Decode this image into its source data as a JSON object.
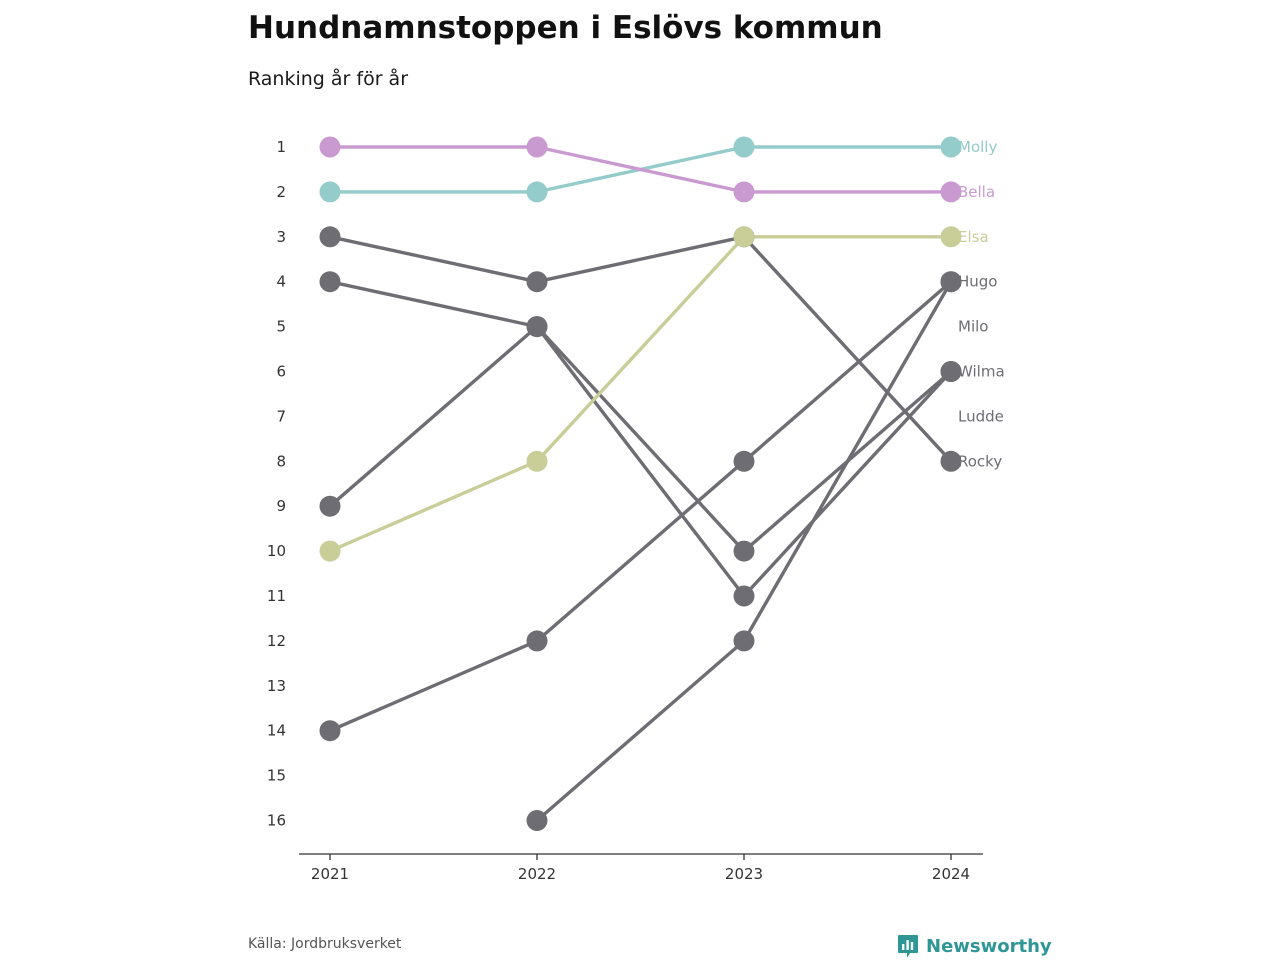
{
  "title": "Hundnamnstoppen i Eslövs kommun",
  "subtitle": "Ranking år för år",
  "source": "Källa: Jordbruksverket",
  "brand": {
    "name": "Newsworthy",
    "icon": "bar-chart-speech-bubble-icon",
    "color": "#2f9696"
  },
  "colors": {
    "highlight_1": "#94cbcb",
    "highlight_2": "#c99ad0",
    "highlight_3": "#c9cd98",
    "other": "#6e6d73",
    "axis": "#333333"
  },
  "chart_data": {
    "type": "line",
    "subtype": "bump",
    "x": [
      "2021",
      "2022",
      "2023",
      "2024"
    ],
    "y_ticks": [
      1,
      2,
      3,
      4,
      5,
      6,
      7,
      8,
      9,
      10,
      11,
      12,
      13,
      14,
      15,
      16
    ],
    "y_reversed": true,
    "ylim": [
      1,
      16
    ],
    "grid": false,
    "legend": "direct labels at right end of lines",
    "end_labels": [
      "Molly",
      "Bella",
      "Elsa",
      "Hugo",
      "Milo",
      "Wilma",
      "Ludde",
      "Rocky"
    ],
    "series": [
      {
        "name": "Molly",
        "color": "#94cbcb",
        "values": [
          2,
          2,
          1,
          1
        ]
      },
      {
        "name": "Bella",
        "color": "#c99ad0",
        "values": [
          1,
          1,
          2,
          2
        ]
      },
      {
        "name": "Elsa",
        "color": "#c9cd98",
        "values": [
          10,
          8,
          3,
          3
        ]
      },
      {
        "name": "Hugo",
        "color": "#6e6d73",
        "values": [
          null,
          16,
          12,
          4
        ]
      },
      {
        "name": "Milo",
        "color": "#6e6d73",
        "values": [
          14,
          12,
          8,
          4
        ]
      },
      {
        "name": "Wilma",
        "color": "#6e6d73",
        "values": [
          9,
          5,
          10,
          6
        ]
      },
      {
        "name": "Ludde",
        "color": "#6e6d73",
        "values": [
          4,
          5,
          11,
          6
        ]
      },
      {
        "name": "Rocky",
        "color": "#6e6d73",
        "values": [
          3,
          4,
          3,
          8
        ]
      }
    ]
  }
}
